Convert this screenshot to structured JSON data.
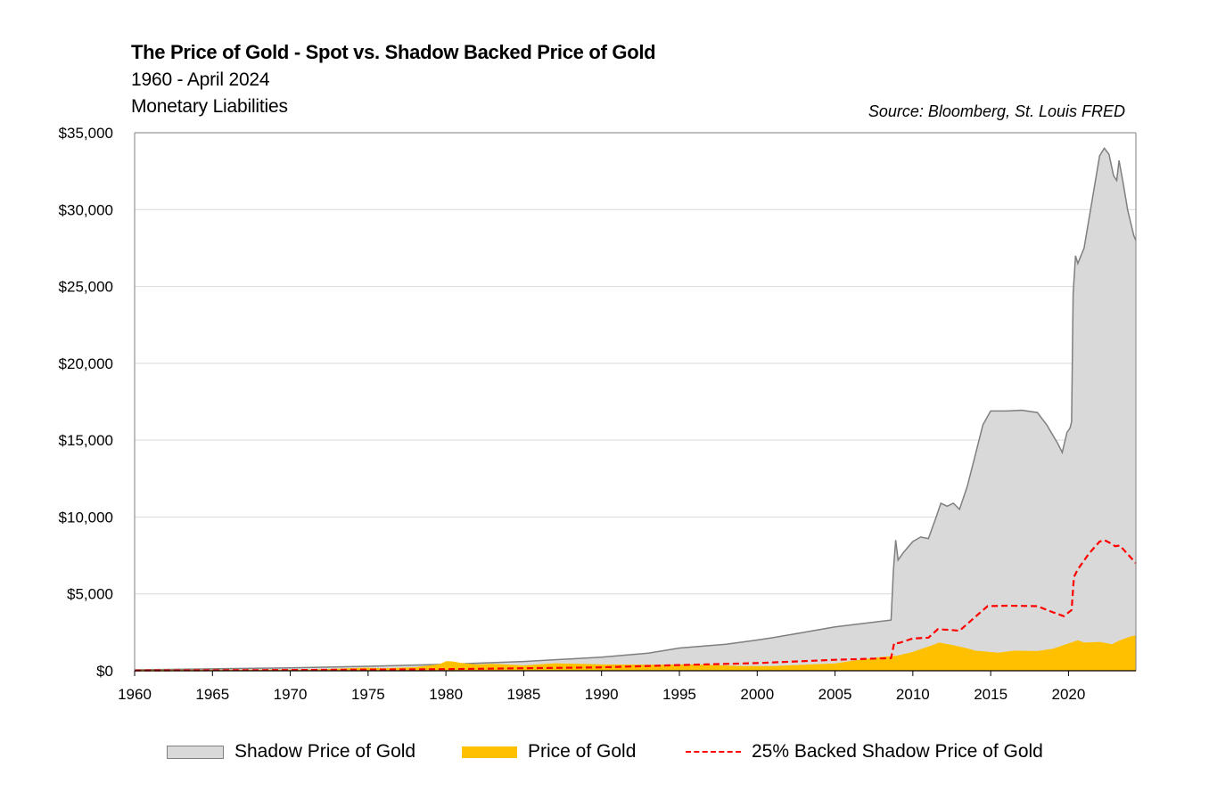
{
  "header": {
    "title": "The Price of Gold - Spot vs. Shadow Backed Price of Gold",
    "subtitle": "1960 - April 2024",
    "subtitle2": "Monetary Liabilities",
    "source": "Source: Bloomberg, St. Louis FRED"
  },
  "colors": {
    "shadow_fill": "#d9d9d9",
    "shadow_line": "#7f7f7f",
    "gold_fill": "#ffc000",
    "backed_line": "#ff0000",
    "grid": "#d9d9d9",
    "axis": "#7f7f7f"
  },
  "chart_data": {
    "type": "area",
    "title": "The Price of Gold - Spot vs. Shadow Backed Price of Gold",
    "xlabel": "",
    "ylabel": "",
    "xlim": [
      1960,
      2024.33
    ],
    "ylim": [
      0,
      35000
    ],
    "x_ticks": [
      1960,
      1965,
      1970,
      1975,
      1980,
      1985,
      1990,
      1995,
      2000,
      2005,
      2010,
      2015,
      2020
    ],
    "x_tick_labels": [
      "1960",
      "1965",
      "1970",
      "1975",
      "1980",
      "1985",
      "1990",
      "1995",
      "2000",
      "2005",
      "2010",
      "2015",
      "2020"
    ],
    "y_ticks": [
      0,
      5000,
      10000,
      15000,
      20000,
      25000,
      30000,
      35000
    ],
    "y_tick_labels": [
      "$0",
      "$5,000",
      "$10,000",
      "$15,000",
      "$20,000",
      "$25,000",
      "$30,000",
      "$35,000"
    ],
    "grid": true,
    "legend_position": "bottom",
    "series": [
      {
        "name": "Shadow Price of Gold",
        "style": "area",
        "points": [
          [
            1960,
            60
          ],
          [
            1965,
            120
          ],
          [
            1970,
            190
          ],
          [
            1975,
            290
          ],
          [
            1980,
            420
          ],
          [
            1985,
            600
          ],
          [
            1990,
            880
          ],
          [
            1993,
            1150
          ],
          [
            1995,
            1480
          ],
          [
            1998,
            1720
          ],
          [
            2000,
            2000
          ],
          [
            2001,
            2150
          ],
          [
            2003,
            2500
          ],
          [
            2005,
            2850
          ],
          [
            2007,
            3100
          ],
          [
            2008.6,
            3300
          ],
          [
            2008.75,
            6500
          ],
          [
            2008.9,
            8500
          ],
          [
            2009.05,
            7200
          ],
          [
            2009.4,
            7700
          ],
          [
            2010,
            8400
          ],
          [
            2010.5,
            8700
          ],
          [
            2011,
            8600
          ],
          [
            2011.5,
            10000
          ],
          [
            2011.8,
            10900
          ],
          [
            2012.2,
            10700
          ],
          [
            2012.6,
            10900
          ],
          [
            2013,
            10500
          ],
          [
            2013.5,
            12000
          ],
          [
            2014,
            14000
          ],
          [
            2014.5,
            16000
          ],
          [
            2015,
            16900
          ],
          [
            2016,
            16900
          ],
          [
            2017,
            16950
          ],
          [
            2018,
            16800
          ],
          [
            2018.6,
            16000
          ],
          [
            2019.3,
            14800
          ],
          [
            2019.6,
            14200
          ],
          [
            2019.9,
            15500
          ],
          [
            2020.1,
            15800
          ],
          [
            2020.2,
            16200
          ],
          [
            2020.3,
            24500
          ],
          [
            2020.45,
            27000
          ],
          [
            2020.6,
            26500
          ],
          [
            2021,
            27500
          ],
          [
            2021.5,
            30500
          ],
          [
            2022,
            33500
          ],
          [
            2022.3,
            34000
          ],
          [
            2022.6,
            33600
          ],
          [
            2022.9,
            32200
          ],
          [
            2023.1,
            31900
          ],
          [
            2023.25,
            33200
          ],
          [
            2023.5,
            31800
          ],
          [
            2023.8,
            30000
          ],
          [
            2024.2,
            28300
          ],
          [
            2024.33,
            28000
          ]
        ]
      },
      {
        "name": "Price of Gold",
        "style": "area",
        "points": [
          [
            1960,
            35
          ],
          [
            1968,
            39
          ],
          [
            1971,
            41
          ],
          [
            1973,
            98
          ],
          [
            1974.8,
            170
          ],
          [
            1976,
            125
          ],
          [
            1978,
            200
          ],
          [
            1979.6,
            400
          ],
          [
            1980.05,
            600
          ],
          [
            1980.5,
            560
          ],
          [
            1981,
            470
          ],
          [
            1982,
            380
          ],
          [
            1983,
            420
          ],
          [
            1985,
            320
          ],
          [
            1987,
            460
          ],
          [
            1990,
            380
          ],
          [
            1993,
            360
          ],
          [
            1996,
            380
          ],
          [
            1999,
            270
          ],
          [
            2001,
            270
          ],
          [
            2003,
            360
          ],
          [
            2005,
            450
          ],
          [
            2006,
            600
          ],
          [
            2008,
            870
          ],
          [
            2009,
            950
          ],
          [
            2010,
            1200
          ],
          [
            2011,
            1550
          ],
          [
            2011.7,
            1800
          ],
          [
            2012.5,
            1650
          ],
          [
            2013.4,
            1450
          ],
          [
            2014,
            1280
          ],
          [
            2015.5,
            1150
          ],
          [
            2016.5,
            1280
          ],
          [
            2018,
            1250
          ],
          [
            2019,
            1400
          ],
          [
            2020.6,
            1950
          ],
          [
            2021,
            1800
          ],
          [
            2022,
            1850
          ],
          [
            2022.8,
            1700
          ],
          [
            2023.3,
            1950
          ],
          [
            2024,
            2200
          ],
          [
            2024.33,
            2280
          ]
        ]
      },
      {
        "name": "25% Backed Shadow Price of Gold",
        "style": "dashed-line",
        "points": [
          [
            1960,
            15
          ],
          [
            1970,
            48
          ],
          [
            1980,
            105
          ],
          [
            1990,
            220
          ],
          [
            1995,
            370
          ],
          [
            2000,
            500
          ],
          [
            2005,
            710
          ],
          [
            2008.6,
            825
          ],
          [
            2008.8,
            1800
          ],
          [
            2009.1,
            1800
          ],
          [
            2010,
            2100
          ],
          [
            2011,
            2150
          ],
          [
            2011.6,
            2700
          ],
          [
            2012.5,
            2650
          ],
          [
            2013,
            2600
          ],
          [
            2014,
            3500
          ],
          [
            2014.8,
            4200
          ],
          [
            2016,
            4230
          ],
          [
            2017,
            4220
          ],
          [
            2018,
            4200
          ],
          [
            2019,
            3800
          ],
          [
            2019.7,
            3550
          ],
          [
            2020.2,
            3950
          ],
          [
            2020.35,
            6100
          ],
          [
            2020.6,
            6600
          ],
          [
            2021.3,
            7600
          ],
          [
            2022,
            8400
          ],
          [
            2022.3,
            8500
          ],
          [
            2022.7,
            8300
          ],
          [
            2023,
            8100
          ],
          [
            2023.3,
            8150
          ],
          [
            2023.7,
            7700
          ],
          [
            2024.33,
            7000
          ]
        ]
      }
    ]
  }
}
